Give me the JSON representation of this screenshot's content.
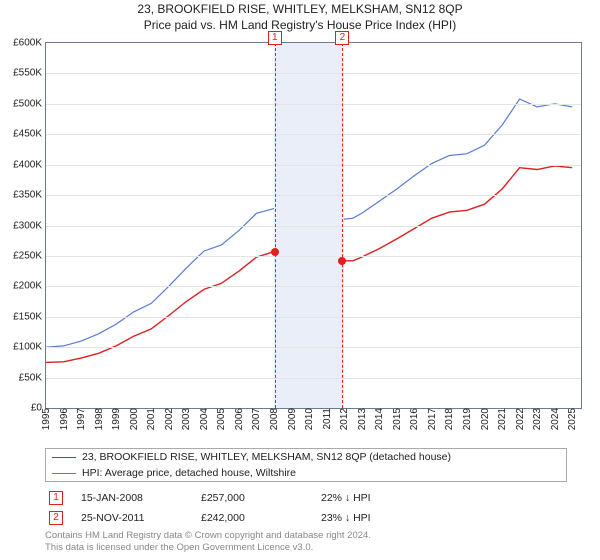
{
  "title1": "23, BROOKFIELD RISE, WHITLEY, MELKSHAM, SN12 8QP",
  "title2": "Price paid vs. HM Land Registry's House Price Index (HPI)",
  "chart": {
    "type": "line",
    "background_color": "#ffffff",
    "grid_color": "#e4e4e4",
    "border_color": "#6a7b97",
    "shade_color": "#eaeef8",
    "shade_range": [
      2008,
      2012
    ],
    "xlim": [
      1995,
      2025.5
    ],
    "ylim": [
      0,
      600000
    ],
    "ytick_step": 50000,
    "ytick_prefix": "£",
    "ytick_suffix": "K",
    "ytick_divisor": 1000,
    "xticks": [
      1995,
      1996,
      1997,
      1998,
      1999,
      2000,
      2001,
      2002,
      2003,
      2004,
      2005,
      2006,
      2007,
      2008,
      2009,
      2010,
      2011,
      2012,
      2013,
      2014,
      2015,
      2016,
      2017,
      2018,
      2019,
      2020,
      2021,
      2022,
      2023,
      2024,
      2025
    ],
    "vmarkers": [
      {
        "id": "1",
        "x": 2008.04
      },
      {
        "id": "2",
        "x": 2011.9
      }
    ],
    "series": [
      {
        "name": "property",
        "color": "#e02020",
        "width": 1.4,
        "points": [
          [
            1995,
            75000
          ],
          [
            1996,
            76000
          ],
          [
            1997,
            82000
          ],
          [
            1998,
            90000
          ],
          [
            1999,
            102000
          ],
          [
            2000,
            118000
          ],
          [
            2001,
            130000
          ],
          [
            2002,
            152000
          ],
          [
            2003,
            175000
          ],
          [
            2004,
            195000
          ],
          [
            2005,
            205000
          ],
          [
            2006,
            225000
          ],
          [
            2007,
            248000
          ],
          [
            2008,
            257000
          ],
          [
            2008.5,
            240000
          ],
          [
            2009,
            218000
          ],
          [
            2009.5,
            225000
          ],
          [
            2010,
            235000
          ],
          [
            2010.5,
            240000
          ],
          [
            2011,
            238000
          ],
          [
            2011.9,
            242000
          ],
          [
            2012.5,
            242000
          ],
          [
            2013,
            248000
          ],
          [
            2014,
            262000
          ],
          [
            2015,
            278000
          ],
          [
            2016,
            295000
          ],
          [
            2017,
            312000
          ],
          [
            2018,
            322000
          ],
          [
            2019,
            325000
          ],
          [
            2020,
            335000
          ],
          [
            2021,
            360000
          ],
          [
            2022,
            395000
          ],
          [
            2023,
            392000
          ],
          [
            2024,
            398000
          ],
          [
            2025,
            395000
          ]
        ]
      },
      {
        "name": "hpi",
        "color": "#5b7bd4",
        "width": 1.2,
        "points": [
          [
            1995,
            100000
          ],
          [
            1996,
            102000
          ],
          [
            1997,
            110000
          ],
          [
            1998,
            122000
          ],
          [
            1999,
            138000
          ],
          [
            2000,
            158000
          ],
          [
            2001,
            172000
          ],
          [
            2002,
            200000
          ],
          [
            2003,
            230000
          ],
          [
            2004,
            258000
          ],
          [
            2005,
            268000
          ],
          [
            2006,
            292000
          ],
          [
            2007,
            320000
          ],
          [
            2008,
            328000
          ],
          [
            2008.5,
            310000
          ],
          [
            2009,
            280000
          ],
          [
            2009.5,
            292000
          ],
          [
            2010,
            308000
          ],
          [
            2010.5,
            312000
          ],
          [
            2011,
            307000
          ],
          [
            2011.9,
            310000
          ],
          [
            2012.5,
            312000
          ],
          [
            2013,
            320000
          ],
          [
            2014,
            340000
          ],
          [
            2015,
            360000
          ],
          [
            2016,
            382000
          ],
          [
            2017,
            402000
          ],
          [
            2018,
            415000
          ],
          [
            2019,
            418000
          ],
          [
            2020,
            432000
          ],
          [
            2021,
            465000
          ],
          [
            2022,
            508000
          ],
          [
            2023,
            495000
          ],
          [
            2024,
            500000
          ],
          [
            2025,
            495000
          ]
        ]
      }
    ],
    "point_markers": [
      {
        "x": 2008.04,
        "y": 257000,
        "color": "#e02020"
      },
      {
        "x": 2011.9,
        "y": 242000,
        "color": "#e02020"
      }
    ]
  },
  "legend": {
    "items": [
      {
        "color": "#e02020",
        "width": 1.4,
        "label": "23, BROOKFIELD RISE, WHITLEY, MELKSHAM, SN12 8QP (detached house)"
      },
      {
        "color": "#5b7bd4",
        "width": 1.2,
        "label": "HPI: Average price, detached house, Wiltshire"
      }
    ]
  },
  "sales": [
    {
      "id": "1",
      "date": "15-JAN-2008",
      "price": "£257,000",
      "delta": "22% ↓ HPI"
    },
    {
      "id": "2",
      "date": "25-NOV-2011",
      "price": "£242,000",
      "delta": "23% ↓ HPI"
    }
  ],
  "footer": {
    "line1": "Contains HM Land Registry data © Crown copyright and database right 2024.",
    "line2": "This data is licensed under the Open Government Licence v3.0."
  }
}
